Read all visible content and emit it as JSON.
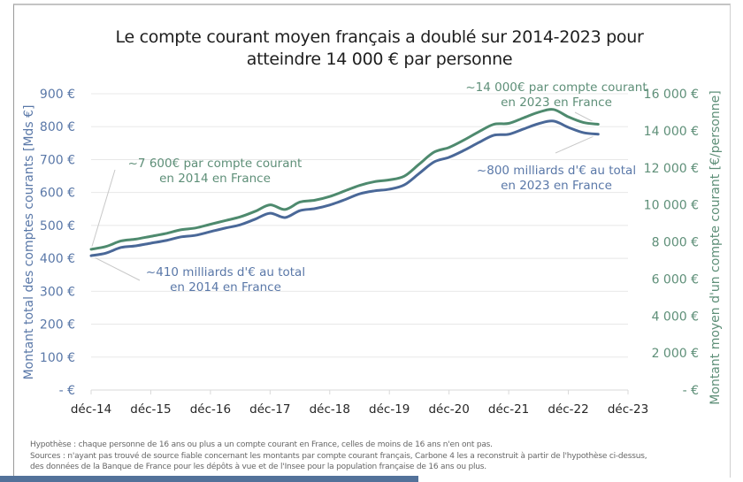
{
  "chart_data": {
    "type": "line",
    "title_lines": [
      "Le compte courant moyen français a doublé sur 2014-2023 pour",
      "atteindre 14 000 € par personne"
    ],
    "xlabel": "",
    "ylabel_left": "Montant total des comptes courants [Mds €]",
    "ylabel_right": "Montant moyen d'un compte courant [€/personne]",
    "x_tick_labels": [
      "déc-14",
      "déc-15",
      "déc-16",
      "déc-17",
      "déc-18",
      "déc-19",
      "déc-20",
      "déc-21",
      "déc-22",
      "déc-23"
    ],
    "y_left_tick_labels": [
      "-  €",
      "100 €",
      "200 €",
      "300 €",
      "400 €",
      "500 €",
      "600 €",
      "700 €",
      "800 €",
      "900 €"
    ],
    "y_right_tick_labels": [
      "-  €",
      "2 000 €",
      "4 000 €",
      "6 000 €",
      "8 000 €",
      "10 000 €",
      "12 000 €",
      "14 000 €",
      "16 000 €"
    ],
    "ylim_left": [
      0,
      900
    ],
    "ylim_right": [
      0,
      16000
    ],
    "x_range_years": [
      0,
      9
    ],
    "x_step_years": 0.25,
    "grid": true,
    "series": [
      {
        "name": "Montant total des comptes courants [Mds €]",
        "axis": "left",
        "color": "#4a6898",
        "values": [
          408,
          416,
          433,
          438,
          446,
          454,
          465,
          470,
          481,
          492,
          502,
          519,
          537,
          524,
          545,
          551,
          562,
          578,
          596,
          605,
          610,
          623,
          658,
          693,
          707,
          728,
          752,
          774,
          777,
          793,
          809,
          817,
          798,
          782,
          777
        ]
      },
      {
        "name": "Montant moyen d'un compte courant [€/personne]",
        "axis": "right",
        "color": "#4e8a6e",
        "values": [
          7600,
          7750,
          8050,
          8150,
          8300,
          8450,
          8650,
          8750,
          8950,
          9150,
          9350,
          9650,
          10000,
          9750,
          10150,
          10250,
          10450,
          10750,
          11050,
          11250,
          11350,
          11550,
          12200,
          12850,
          13100,
          13500,
          13950,
          14350,
          14400,
          14700,
          15000,
          15150,
          14750,
          14450,
          14350
        ]
      }
    ],
    "annotations": [
      {
        "text_lines": [
          "~7 600€ par compte courant",
          "en 2014 en France"
        ],
        "series": "right",
        "color": "#5e8f78"
      },
      {
        "text_lines": [
          "~410 milliards d'€ au total",
          "en 2014 en France"
        ],
        "series": "left",
        "color": "#5a78a8"
      },
      {
        "text_lines": [
          "~14 000€ par compte courant",
          "en 2023 en France"
        ],
        "series": "right",
        "color": "#5e8f78"
      },
      {
        "text_lines": [
          "~800 milliards d'€ au total",
          "en 2023 en France"
        ],
        "series": "left",
        "color": "#5a78a8"
      }
    ]
  },
  "colors": {
    "left_axis": "#5a78a8",
    "right_axis": "#5e8f78",
    "grid": "#e8e8e8",
    "bottom_bar": "#53729a"
  },
  "notes": [
    "Hypothèse : chaque personne de 16 ans ou plus a un compte courant en France, celles de moins de 16 ans n'en ont pas.",
    "Sources : n'ayant pas trouvé de source fiable concernant les montants par compte courant français, Carbone 4 les a reconstruit à partir de l'hypothèse ci-dessus,",
    "des données de la Banque de France pour les dépôts à vue et de l'Insee pour la population française de 16 ans ou plus."
  ]
}
